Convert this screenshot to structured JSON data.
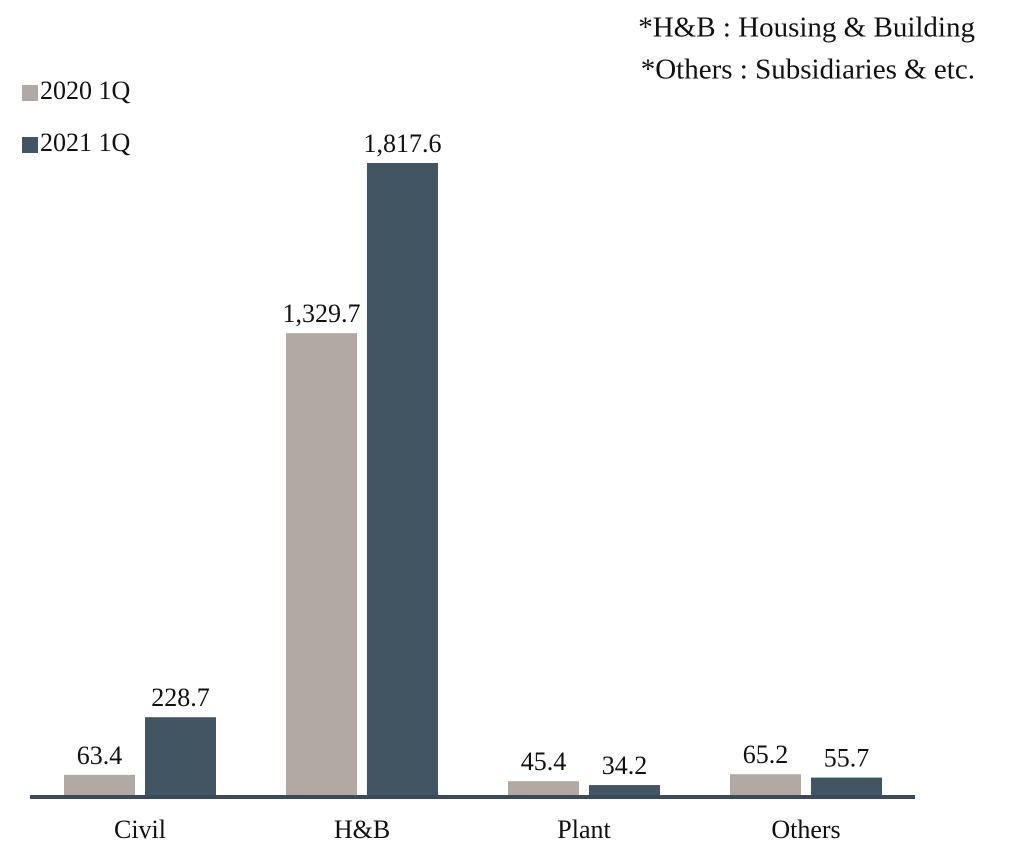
{
  "chart_data": {
    "type": "bar",
    "annotations": [
      "*H&B : Housing & Building",
      "*Others : Subsidiaries & etc."
    ],
    "categories": [
      "Civil",
      "H&B",
      "Plant",
      "Others"
    ],
    "series": [
      {
        "name": "2020 1Q",
        "color": "#b1a9a4",
        "values": [
          63.4,
          1329.7,
          45.4,
          65.2
        ],
        "value_labels": [
          "63.4",
          "1,329.7",
          "45.4",
          "65.2"
        ]
      },
      {
        "name": "2021 1Q",
        "color": "#425563",
        "values": [
          228.7,
          1817.6,
          34.2,
          55.7
        ],
        "value_labels": [
          "228.7",
          "1,817.6",
          "34.2",
          "55.7"
        ]
      }
    ]
  }
}
